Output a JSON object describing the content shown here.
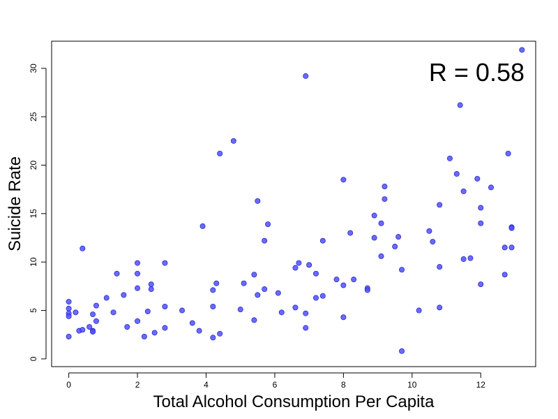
{
  "chart_data": {
    "type": "scatter",
    "title": "",
    "xlabel": "Total Alcohol Consumption Per Capita",
    "ylabel": "Suicide Rate",
    "xlim": [
      -0.5,
      13.6
    ],
    "ylim": [
      -0.8,
      32.8
    ],
    "x_ticks": [
      0,
      2,
      4,
      6,
      8,
      10,
      12
    ],
    "y_ticks": [
      0,
      5,
      10,
      15,
      20,
      25,
      30
    ],
    "annotation": "R =  0.58",
    "grid": false,
    "legend": "none",
    "point_color": "#5050ff",
    "point_edge_color": "#2a2ac8",
    "series": [
      {
        "points": [
          [
            0.0,
            5.9
          ],
          [
            0.0,
            5.2
          ],
          [
            0.0,
            4.7
          ],
          [
            0.0,
            4.4
          ],
          [
            0.0,
            2.3
          ],
          [
            0.2,
            4.8
          ],
          [
            0.3,
            2.9
          ],
          [
            0.4,
            3.0
          ],
          [
            0.4,
            11.4
          ],
          [
            0.6,
            3.3
          ],
          [
            0.7,
            2.9
          ],
          [
            0.7,
            4.6
          ],
          [
            0.7,
            2.8
          ],
          [
            0.8,
            3.9
          ],
          [
            0.8,
            5.5
          ],
          [
            1.1,
            6.3
          ],
          [
            1.3,
            4.8
          ],
          [
            1.4,
            8.8
          ],
          [
            1.6,
            6.6
          ],
          [
            1.7,
            3.3
          ],
          [
            2.0,
            9.9
          ],
          [
            2.0,
            8.8
          ],
          [
            2.0,
            7.3
          ],
          [
            2.0,
            3.9
          ],
          [
            2.2,
            2.3
          ],
          [
            2.3,
            4.9
          ],
          [
            2.4,
            7.7
          ],
          [
            2.4,
            7.2
          ],
          [
            2.5,
            2.7
          ],
          [
            2.8,
            9.9
          ],
          [
            2.8,
            5.4
          ],
          [
            2.8,
            3.2
          ],
          [
            3.3,
            5.0
          ],
          [
            3.6,
            3.7
          ],
          [
            3.8,
            2.9
          ],
          [
            3.9,
            13.7
          ],
          [
            4.2,
            2.2
          ],
          [
            4.2,
            7.1
          ],
          [
            4.2,
            5.4
          ],
          [
            4.3,
            7.8
          ],
          [
            4.4,
            21.2
          ],
          [
            4.4,
            2.6
          ],
          [
            4.8,
            22.5
          ],
          [
            5.0,
            5.1
          ],
          [
            5.1,
            7.8
          ],
          [
            5.4,
            8.7
          ],
          [
            5.4,
            4.0
          ],
          [
            5.5,
            16.3
          ],
          [
            5.5,
            6.6
          ],
          [
            5.7,
            12.2
          ],
          [
            5.7,
            7.2
          ],
          [
            5.8,
            13.9
          ],
          [
            6.1,
            6.8
          ],
          [
            6.2,
            4.8
          ],
          [
            6.6,
            9.4
          ],
          [
            6.6,
            5.3
          ],
          [
            6.7,
            9.9
          ],
          [
            6.9,
            29.2
          ],
          [
            6.9,
            4.7
          ],
          [
            6.9,
            3.2
          ],
          [
            7.0,
            9.7
          ],
          [
            7.2,
            8.8
          ],
          [
            7.2,
            6.3
          ],
          [
            7.4,
            12.2
          ],
          [
            7.4,
            6.5
          ],
          [
            7.8,
            8.2
          ],
          [
            8.0,
            18.5
          ],
          [
            8.0,
            7.6
          ],
          [
            8.0,
            4.3
          ],
          [
            8.2,
            13.0
          ],
          [
            8.3,
            8.2
          ],
          [
            8.7,
            7.3
          ],
          [
            8.7,
            7.1
          ],
          [
            8.9,
            14.8
          ],
          [
            8.9,
            12.5
          ],
          [
            9.1,
            14.0
          ],
          [
            9.1,
            10.6
          ],
          [
            9.2,
            17.8
          ],
          [
            9.2,
            16.5
          ],
          [
            9.5,
            11.6
          ],
          [
            9.6,
            12.6
          ],
          [
            9.7,
            9.2
          ],
          [
            9.7,
            0.8
          ],
          [
            10.2,
            5.0
          ],
          [
            10.5,
            13.2
          ],
          [
            10.6,
            12.1
          ],
          [
            10.8,
            15.9
          ],
          [
            10.8,
            9.5
          ],
          [
            10.8,
            5.3
          ],
          [
            11.1,
            20.7
          ],
          [
            11.3,
            19.1
          ],
          [
            11.4,
            26.2
          ],
          [
            11.5,
            17.3
          ],
          [
            11.5,
            10.3
          ],
          [
            11.7,
            10.4
          ],
          [
            11.9,
            18.6
          ],
          [
            12.0,
            15.6
          ],
          [
            12.0,
            14.0
          ],
          [
            12.0,
            7.7
          ],
          [
            12.3,
            17.7
          ],
          [
            12.7,
            11.5
          ],
          [
            12.7,
            8.7
          ],
          [
            12.8,
            21.2
          ],
          [
            12.9,
            13.6
          ],
          [
            12.9,
            13.5
          ],
          [
            12.9,
            11.5
          ],
          [
            13.2,
            31.9
          ]
        ]
      }
    ]
  }
}
